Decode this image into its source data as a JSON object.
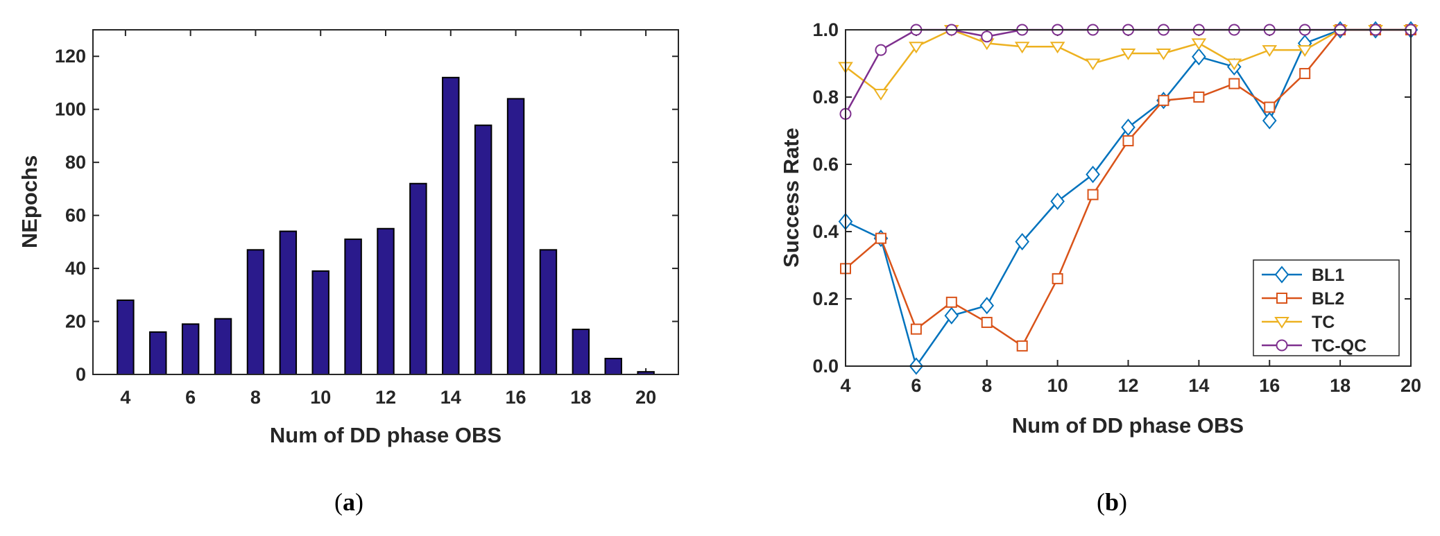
{
  "chart_data": [
    {
      "id": "a",
      "type": "bar",
      "caption": "a",
      "xlabel": "Num of DD phase OBS",
      "ylabel": "NEpochs",
      "xlim": [
        3,
        21
      ],
      "ylim": [
        0,
        130
      ],
      "xticks": [
        4,
        6,
        8,
        10,
        12,
        14,
        16,
        18,
        20
      ],
      "yticks": [
        0,
        20,
        40,
        60,
        80,
        100,
        120
      ],
      "bar_color": "#2a1a8c",
      "categories": [
        4,
        5,
        6,
        7,
        8,
        9,
        10,
        11,
        12,
        13,
        14,
        15,
        16,
        17,
        18,
        19,
        20
      ],
      "values": [
        28,
        16,
        19,
        21,
        47,
        54,
        39,
        51,
        55,
        72,
        112,
        94,
        104,
        47,
        17,
        6,
        1
      ]
    },
    {
      "id": "b",
      "type": "line",
      "caption": "b",
      "xlabel": "Num of DD phase OBS",
      "ylabel": "Success Rate",
      "xlim": [
        4,
        20
      ],
      "ylim": [
        0,
        1
      ],
      "xticks": [
        4,
        6,
        8,
        10,
        12,
        14,
        16,
        18,
        20
      ],
      "yticks": [
        "0.0",
        "0.2",
        "0.4",
        "0.6",
        "0.8",
        "1.0"
      ],
      "legend_position": "bottom-right",
      "x": [
        4,
        5,
        6,
        7,
        8,
        9,
        10,
        11,
        12,
        13,
        14,
        15,
        16,
        17,
        18,
        19,
        20
      ],
      "series": [
        {
          "name": "BL1",
          "color": "#0072BD",
          "marker": "diamond",
          "values": [
            0.43,
            0.38,
            0.0,
            0.15,
            0.18,
            0.37,
            0.49,
            0.57,
            0.71,
            0.79,
            0.92,
            0.89,
            0.73,
            0.96,
            1.0,
            1.0,
            1.0
          ]
        },
        {
          "name": "BL2",
          "color": "#D95319",
          "marker": "square",
          "values": [
            0.29,
            0.38,
            0.11,
            0.19,
            0.13,
            0.06,
            0.26,
            0.51,
            0.67,
            0.79,
            0.8,
            0.84,
            0.77,
            0.87,
            1.0,
            1.0,
            1.0
          ]
        },
        {
          "name": "TC",
          "color": "#EDB120",
          "marker": "triangle-down",
          "values": [
            0.89,
            0.81,
            0.95,
            1.0,
            0.96,
            0.95,
            0.95,
            0.9,
            0.93,
            0.93,
            0.96,
            0.9,
            0.94,
            0.94,
            1.0,
            1.0,
            1.0
          ]
        },
        {
          "name": "TC-QC",
          "color": "#7E2F8E",
          "marker": "circle",
          "values": [
            0.75,
            0.94,
            1.0,
            1.0,
            0.98,
            1.0,
            1.0,
            1.0,
            1.0,
            1.0,
            1.0,
            1.0,
            1.0,
            1.0,
            1.0,
            1.0,
            1.0
          ]
        }
      ]
    }
  ]
}
